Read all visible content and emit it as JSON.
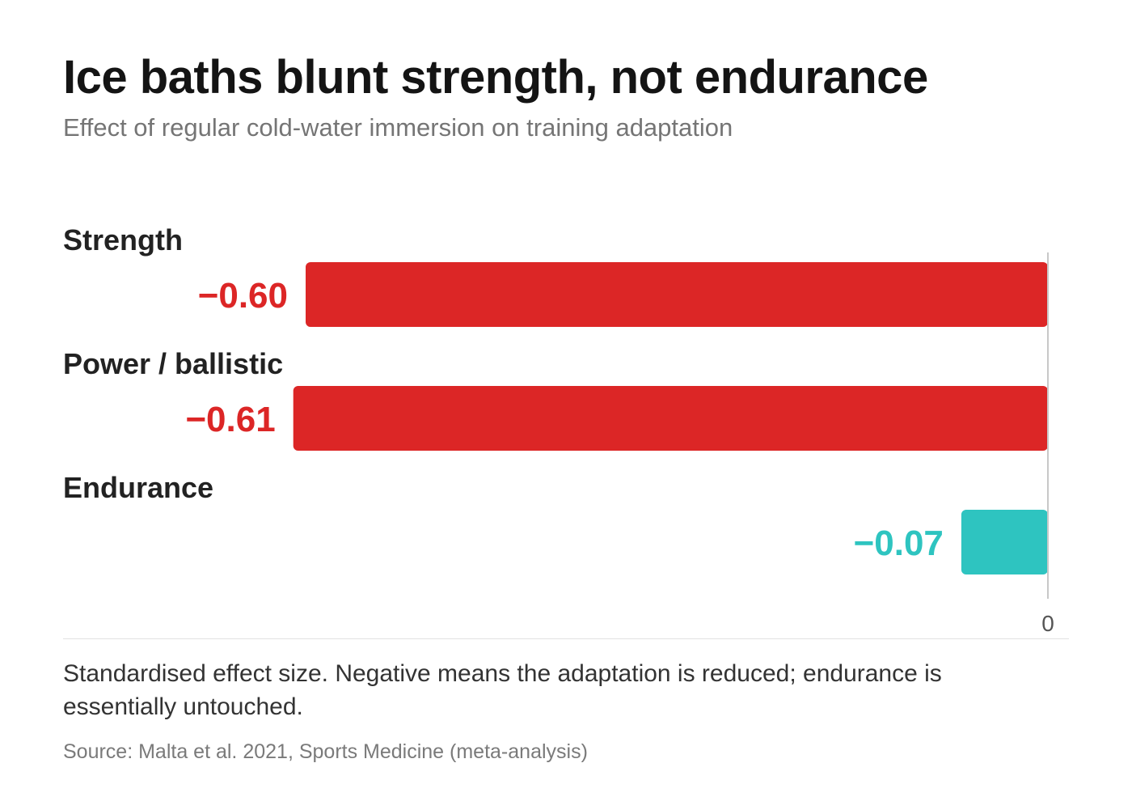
{
  "header": {
    "title": "Ice baths blunt strength, not endurance",
    "subtitle": "Effect of regular cold-water immersion on training adaptation"
  },
  "chart_data": {
    "type": "bar",
    "orientation": "horizontal",
    "categories": [
      "Strength",
      "Power / ballistic",
      "Endurance"
    ],
    "values": [
      -0.6,
      -0.61,
      -0.07
    ],
    "value_labels": [
      "−0.60",
      "−0.61",
      "−0.07"
    ],
    "colors": [
      "#dc2626",
      "#dc2626",
      "#2ec4c0"
    ],
    "x_ticks": [
      {
        "value": 0,
        "label": "0"
      }
    ],
    "xlim": [
      -0.61,
      0
    ],
    "grid": false,
    "legend": "none"
  },
  "footer": {
    "note": "Standardised effect size. Negative means the adaptation is reduced; endurance is essentially untouched.",
    "source": "Source: Malta et al. 2021, Sports Medicine (meta-analysis)"
  }
}
